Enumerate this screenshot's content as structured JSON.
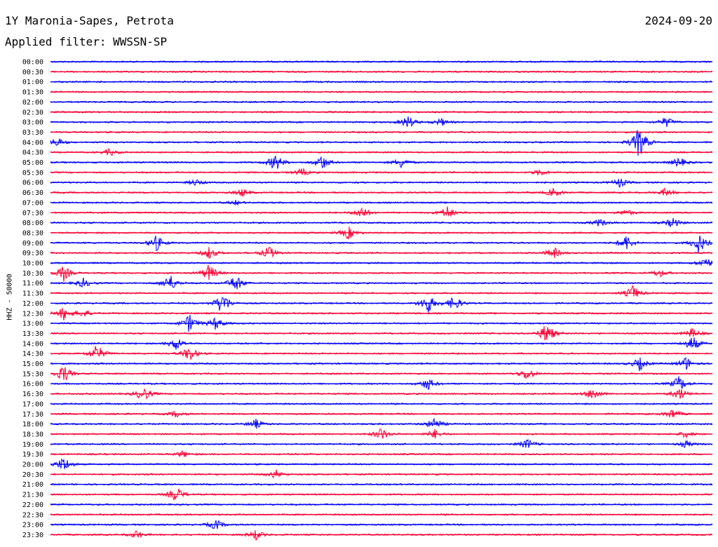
{
  "header": {
    "station": "1Y Maronia-Sapes, Petrota",
    "date": "2024-09-20",
    "filter": "Applied filter: WWSSN-SP"
  },
  "chart_data": {
    "type": "line",
    "title": "1Y Maronia-Sapes, Petrota",
    "subtitle": "Applied filter: WWSSN-SP",
    "ylabel": "HHZ - 50000",
    "xlabel": "",
    "colors": [
      "#0000ff",
      "#ff0033"
    ],
    "rows": [
      {
        "label": "00:00",
        "events": []
      },
      {
        "label": "00:30",
        "events": []
      },
      {
        "label": "01:00",
        "events": []
      },
      {
        "label": "01:30",
        "events": []
      },
      {
        "label": "02:00",
        "events": []
      },
      {
        "label": "02:30",
        "events": []
      },
      {
        "label": "03:00",
        "events": [
          [
            0.54,
            10
          ],
          [
            0.59,
            6
          ],
          [
            0.93,
            8
          ]
        ]
      },
      {
        "label": "03:30",
        "events": []
      },
      {
        "label": "04:00",
        "events": [
          [
            0.01,
            7
          ],
          [
            0.89,
            26
          ]
        ]
      },
      {
        "label": "04:30",
        "events": [
          [
            0.09,
            5
          ]
        ]
      },
      {
        "label": "05:00",
        "events": [
          [
            0.34,
            14
          ],
          [
            0.41,
            12
          ],
          [
            0.53,
            8
          ],
          [
            0.95,
            8
          ]
        ]
      },
      {
        "label": "05:30",
        "events": [
          [
            0.38,
            6
          ],
          [
            0.74,
            5
          ]
        ]
      },
      {
        "label": "06:00",
        "events": [
          [
            0.22,
            5
          ],
          [
            0.86,
            7
          ]
        ]
      },
      {
        "label": "06:30",
        "events": [
          [
            0.29,
            6
          ],
          [
            0.76,
            7
          ],
          [
            0.93,
            7
          ]
        ]
      },
      {
        "label": "07:00",
        "events": [
          [
            0.28,
            3
          ]
        ]
      },
      {
        "label": "07:30",
        "events": [
          [
            0.47,
            10
          ],
          [
            0.6,
            10
          ],
          [
            0.87,
            5
          ]
        ]
      },
      {
        "label": "08:00",
        "events": [
          [
            0.83,
            6
          ],
          [
            0.94,
            8
          ]
        ]
      },
      {
        "label": "08:30",
        "events": [
          [
            0.45,
            10
          ]
        ]
      },
      {
        "label": "09:00",
        "events": [
          [
            0.16,
            12
          ],
          [
            0.87,
            12
          ],
          [
            0.98,
            16
          ]
        ]
      },
      {
        "label": "09:30",
        "events": [
          [
            0.24,
            9
          ],
          [
            0.33,
            10
          ],
          [
            0.76,
            9
          ]
        ]
      },
      {
        "label": "10:00",
        "events": [
          [
            0.99,
            9
          ]
        ]
      },
      {
        "label": "10:30",
        "events": [
          [
            0.02,
            12
          ],
          [
            0.24,
            14
          ],
          [
            0.92,
            6
          ]
        ]
      },
      {
        "label": "11:00",
        "events": [
          [
            0.05,
            7
          ],
          [
            0.18,
            14
          ],
          [
            0.28,
            14
          ]
        ]
      },
      {
        "label": "11:30",
        "events": [
          [
            0.88,
            12
          ]
        ]
      },
      {
        "label": "12:00",
        "events": [
          [
            0.26,
            18
          ],
          [
            0.57,
            16
          ],
          [
            0.61,
            12
          ]
        ]
      },
      {
        "label": "12:30",
        "events": [
          [
            0.02,
            10
          ],
          [
            0.05,
            6
          ]
        ]
      },
      {
        "label": "13:00",
        "events": [
          [
            0.21,
            14
          ],
          [
            0.25,
            10
          ]
        ]
      },
      {
        "label": "13:30",
        "events": [
          [
            0.75,
            18
          ],
          [
            0.97,
            8
          ]
        ]
      },
      {
        "label": "14:00",
        "events": [
          [
            0.19,
            10
          ],
          [
            0.97,
            12
          ]
        ]
      },
      {
        "label": "14:30",
        "events": [
          [
            0.07,
            14
          ],
          [
            0.21,
            12
          ]
        ]
      },
      {
        "label": "15:00",
        "events": [
          [
            0.89,
            10
          ],
          [
            0.96,
            10
          ]
        ]
      },
      {
        "label": "15:30",
        "events": [
          [
            0.02,
            14
          ],
          [
            0.72,
            10
          ]
        ]
      },
      {
        "label": "16:00",
        "events": [
          [
            0.57,
            10
          ],
          [
            0.95,
            12
          ]
        ]
      },
      {
        "label": "16:30",
        "events": [
          [
            0.14,
            12
          ],
          [
            0.82,
            10
          ],
          [
            0.95,
            10
          ]
        ]
      },
      {
        "label": "17:00",
        "events": []
      },
      {
        "label": "17:30",
        "events": [
          [
            0.19,
            5
          ],
          [
            0.94,
            8
          ]
        ]
      },
      {
        "label": "18:00",
        "events": [
          [
            0.31,
            7
          ],
          [
            0.58,
            10
          ]
        ]
      },
      {
        "label": "18:30",
        "events": [
          [
            0.5,
            10
          ],
          [
            0.58,
            7
          ],
          [
            0.96,
            5
          ]
        ]
      },
      {
        "label": "19:00",
        "events": [
          [
            0.72,
            8
          ],
          [
            0.96,
            5
          ]
        ]
      },
      {
        "label": "19:30",
        "events": [
          [
            0.2,
            5
          ]
        ]
      },
      {
        "label": "20:00",
        "events": [
          [
            0.02,
            12
          ]
        ]
      },
      {
        "label": "20:30",
        "events": [
          [
            0.34,
            7
          ]
        ]
      },
      {
        "label": "21:00",
        "events": []
      },
      {
        "label": "21:30",
        "events": [
          [
            0.19,
            12
          ]
        ]
      },
      {
        "label": "22:00",
        "events": []
      },
      {
        "label": "22:30",
        "events": []
      },
      {
        "label": "23:00",
        "events": [
          [
            0.25,
            8
          ]
        ]
      },
      {
        "label": "23:30",
        "events": [
          [
            0.13,
            6
          ],
          [
            0.31,
            8
          ]
        ]
      }
    ]
  }
}
